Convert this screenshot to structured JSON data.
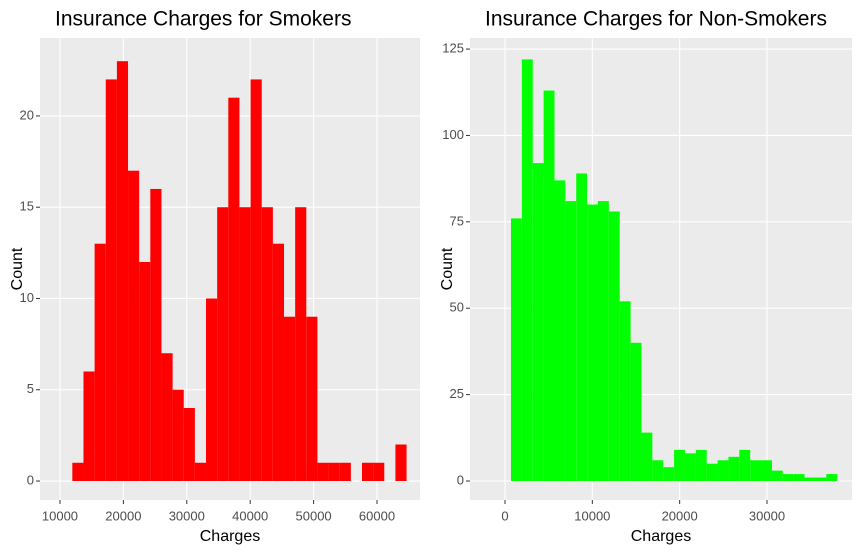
{
  "chart_data": [
    {
      "type": "histogram",
      "title": "Insurance Charges for Smokers",
      "x_label": "Charges",
      "y_label": "Count",
      "color": "#ff0000",
      "bins": [
        11950,
        13707,
        15464,
        17221,
        18978,
        20735,
        22492,
        24249,
        26006,
        27763,
        29520,
        31277,
        33034,
        34791,
        36548,
        38305,
        40062,
        41819,
        43576,
        45333,
        47090,
        48847,
        50604,
        52361,
        54118,
        55875,
        57632,
        59389,
        61146,
        62903,
        64660
      ],
      "values": [
        1,
        6,
        13,
        22,
        23,
        17,
        12,
        16,
        7,
        5,
        4,
        1,
        10,
        15,
        21,
        15,
        22,
        15,
        13,
        9,
        15,
        9,
        1,
        1,
        1,
        0,
        1,
        1,
        0,
        2
      ],
      "xlim": [
        6850,
        66780
      ],
      "xticks": [
        10000,
        20000,
        30000,
        40000,
        50000,
        60000
      ],
      "ylim": [
        -1.04,
        24.27
      ],
      "yticks": [
        0,
        5,
        10,
        15,
        20
      ],
      "grid": true
    },
    {
      "type": "histogram",
      "title": "Insurance Charges for Non-Smokers",
      "x_label": "Charges",
      "y_label": "Count",
      "color": "#00ff00",
      "bins": [
        687,
        1932,
        3177,
        4422,
        5667,
        6912,
        8157,
        9402,
        10647,
        11892,
        13137,
        14382,
        15627,
        16872,
        18117,
        19362,
        20607,
        21852,
        23097,
        24342,
        25587,
        26832,
        28077,
        29322,
        30567,
        31812,
        33057,
        34302,
        35547,
        36792,
        38037
      ],
      "values": [
        76,
        122,
        92,
        113,
        87,
        81,
        89,
        80,
        81,
        78,
        52,
        40,
        14,
        6,
        4,
        9,
        8,
        9,
        5,
        6,
        7,
        9,
        6,
        6,
        3,
        2,
        2,
        1,
        1,
        2
      ],
      "xlim": [
        -4008,
        39735
      ],
      "xticks": [
        0,
        10000,
        20000,
        30000
      ],
      "ylim": [
        -5.5,
        128.2
      ],
      "yticks": [
        0,
        25,
        50,
        75,
        100,
        125
      ],
      "grid": true
    }
  ]
}
